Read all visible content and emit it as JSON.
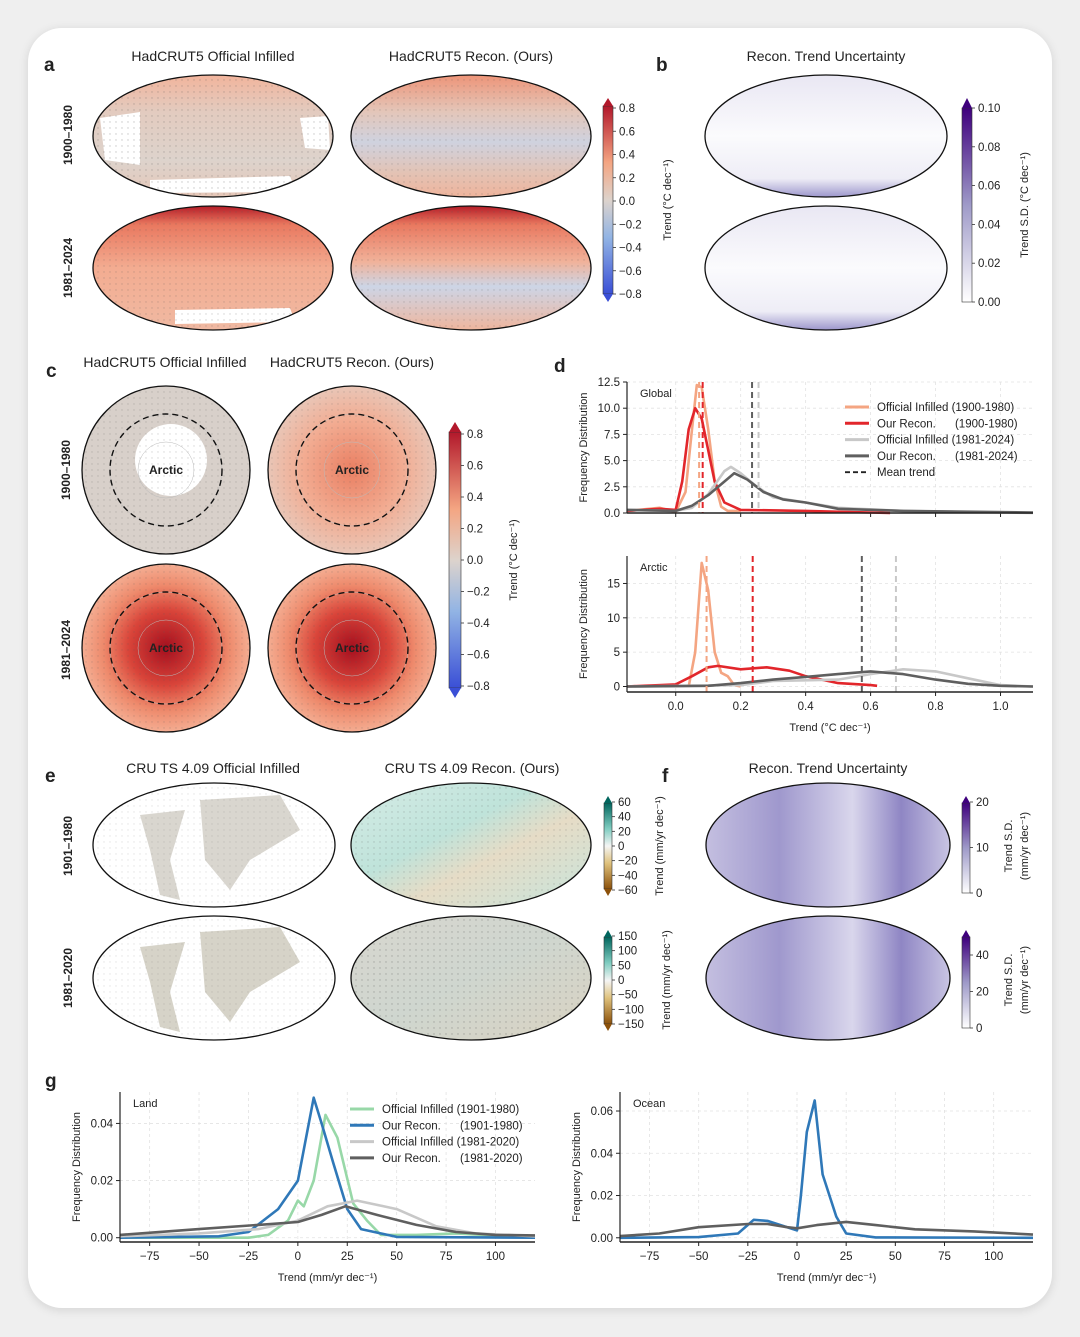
{
  "panels": {
    "a": {
      "label": "a",
      "titles": [
        "HadCRUT5 Official Infilled",
        "HadCRUT5 Recon. (Ours)"
      ],
      "rows": [
        "1900–1980",
        "1981–2024"
      ],
      "colorbar": {
        "ticks": [
          "0.8",
          "0.6",
          "0.4",
          "0.2",
          "0.0",
          "−0.2",
          "−0.4",
          "−0.6",
          "−0.8"
        ],
        "label": "Trend (°C dec⁻¹)",
        "colors": [
          "#b2182b",
          "#f4a582",
          "#ddd3cc",
          "#92b4e4",
          "#3a4fd6"
        ]
      }
    },
    "b": {
      "label": "b",
      "title": "Recon. Trend Uncertainty",
      "colorbar": {
        "ticks": [
          "0.10",
          "0.08",
          "0.06",
          "0.04",
          "0.02",
          "0.00"
        ],
        "label": "Trend S.D. (°C dec⁻¹)",
        "colors": [
          "#3f007d",
          "#9e9ac8",
          "#ffffff"
        ]
      }
    },
    "c": {
      "label": "c",
      "titles": [
        "HadCRUT5 Official Infilled",
        "HadCRUT5 Recon. (Ours)"
      ],
      "rows": [
        "1900–1980",
        "1981–2024"
      ],
      "region": "Arctic",
      "colorbar": {
        "ticks": [
          "0.8",
          "0.6",
          "0.4",
          "0.2",
          "0.0",
          "−0.2",
          "−0.4",
          "−0.6",
          "−0.8"
        ],
        "label": "Trend (°C dec⁻¹)"
      }
    },
    "d": {
      "label": "d"
    },
    "e": {
      "label": "e",
      "titles": [
        "CRU TS 4.09 Official Infilled",
        "CRU TS 4.09 Recon. (Ours)"
      ],
      "rows": [
        "1901–1980",
        "1981–2020"
      ],
      "colorbar1": {
        "ticks": [
          "60",
          "40",
          "20",
          "0",
          "−20",
          "−40",
          "−60"
        ],
        "label": "Trend (mm/yr dec⁻¹)",
        "colors": [
          "#01665e",
          "#80cdc1",
          "#f5f5f5",
          "#dfc27d",
          "#8c510a"
        ]
      },
      "colorbar2": {
        "ticks": [
          "150",
          "100",
          "50",
          "0",
          "−50",
          "−100",
          "−150"
        ],
        "label": "Trend (mm/yr dec⁻¹)"
      }
    },
    "f": {
      "label": "f",
      "title": "Recon. Trend Uncertainty",
      "colorbar1": {
        "ticks": [
          "20",
          "10",
          "0"
        ],
        "label1": "Trend S.D.",
        "label2": "(mm/yr dec⁻¹)"
      },
      "colorbar2": {
        "ticks": [
          "40",
          "20",
          "0"
        ],
        "label1": "Trend S.D.",
        "label2": "(mm/yr dec⁻¹)"
      }
    },
    "g": {
      "label": "g"
    }
  },
  "chart_data": [
    {
      "id": "d-global",
      "type": "line",
      "panel_text": "Global",
      "ylabel": "Frequency Distribution",
      "xlabel": "",
      "xlim": [
        -0.15,
        1.1
      ],
      "ylim": [
        0,
        12.5
      ],
      "grid": true,
      "xticks": [
        "0.0",
        "0.2",
        "0.4",
        "0.6",
        "0.8",
        "1.0"
      ],
      "yticks": [
        "0.0",
        "2.5",
        "5.0",
        "7.5",
        "10.0",
        "12.5"
      ],
      "show_xtick_labels": false,
      "legend": {
        "placement": "top-right",
        "entries": [
          {
            "label": "Official Infilled (1900-1980)",
            "color": "#f4a582",
            "style": "solid"
          },
          {
            "label": "Our Recon.      (1900-1980)",
            "color": "#e2262b",
            "style": "solid"
          },
          {
            "label": "Official Infilled (1981-2024)",
            "color": "#c8c8c8",
            "style": "solid"
          },
          {
            "label": "Our Recon.      (1981-2024)",
            "color": "#5f5f5f",
            "style": "solid"
          },
          {
            "label": "Mean trend",
            "color": "#222222",
            "style": "dashed"
          }
        ]
      },
      "series": [
        {
          "name": "Official Infilled (1900-1980)",
          "color": "#f4a582",
          "points": [
            [
              -0.15,
              0.2
            ],
            [
              -0.05,
              0.5
            ],
            [
              0.0,
              0.1
            ],
            [
              0.03,
              2
            ],
            [
              0.05,
              8
            ],
            [
              0.065,
              12.2
            ],
            [
              0.08,
              12
            ],
            [
              0.1,
              8
            ],
            [
              0.12,
              3
            ],
            [
              0.14,
              0.6
            ],
            [
              0.16,
              0.2
            ],
            [
              0.2,
              0.2
            ]
          ],
          "mean": 0.072
        },
        {
          "name": "Our Recon. (1900-1980)",
          "color": "#e2262b",
          "points": [
            [
              -0.15,
              0.2
            ],
            [
              -0.05,
              0.4
            ],
            [
              0.0,
              0.3
            ],
            [
              0.02,
              3
            ],
            [
              0.04,
              8
            ],
            [
              0.06,
              10
            ],
            [
              0.08,
              9
            ],
            [
              0.1,
              6
            ],
            [
              0.12,
              3
            ],
            [
              0.15,
              1
            ],
            [
              0.2,
              0.3
            ],
            [
              0.4,
              0.2
            ],
            [
              0.66,
              0.0
            ]
          ],
          "mean": 0.083
        },
        {
          "name": "Official Infilled (1981-2024)",
          "color": "#c8c8c8",
          "points": [
            [
              -0.15,
              0.3
            ],
            [
              0.0,
              0.2
            ],
            [
              0.05,
              0.5
            ],
            [
              0.1,
              1.8
            ],
            [
              0.15,
              4
            ],
            [
              0.17,
              4.4
            ],
            [
              0.2,
              3.8
            ],
            [
              0.25,
              2.5
            ],
            [
              0.3,
              1.5
            ],
            [
              0.4,
              1.0
            ],
            [
              0.5,
              0.5
            ],
            [
              0.7,
              0.2
            ],
            [
              1.1,
              0.0
            ]
          ],
          "mean": 0.255
        },
        {
          "name": "Our Recon. (1981-2024)",
          "color": "#5f5f5f",
          "points": [
            [
              -0.15,
              0.3
            ],
            [
              0.0,
              0.2
            ],
            [
              0.05,
              0.7
            ],
            [
              0.1,
              1.7
            ],
            [
              0.18,
              3.8
            ],
            [
              0.22,
              3.2
            ],
            [
              0.27,
              2.0
            ],
            [
              0.33,
              1.3
            ],
            [
              0.4,
              1.0
            ],
            [
              0.5,
              0.4
            ],
            [
              0.7,
              0.2
            ],
            [
              1.1,
              0.05
            ]
          ],
          "mean": 0.235
        }
      ]
    },
    {
      "id": "d-arctic",
      "type": "line",
      "panel_text": "Arctic",
      "ylabel": "Frequency Distribution",
      "xlabel": "Trend (°C dec⁻¹)",
      "xlim": [
        -0.15,
        1.1
      ],
      "ylim": [
        -0.8,
        19
      ],
      "grid": true,
      "xticks": [
        "0.0",
        "0.2",
        "0.4",
        "0.6",
        "0.8",
        "1.0"
      ],
      "yticks": [
        "0",
        "5",
        "10",
        "15"
      ],
      "show_xtick_labels": true,
      "series": [
        {
          "name": "Official Infilled (1900-1980)",
          "color": "#f4a582",
          "points": [
            [
              0.04,
              0
            ],
            [
              0.06,
              5
            ],
            [
              0.08,
              18
            ],
            [
              0.1,
              14
            ],
            [
              0.12,
              5
            ],
            [
              0.14,
              2
            ],
            [
              0.16,
              1.5
            ],
            [
              0.18,
              0.2
            ],
            [
              0.2,
              0
            ]
          ],
          "mean": 0.095
        },
        {
          "name": "Our Recon. (1900-1980)",
          "color": "#e2262b",
          "points": [
            [
              -0.15,
              0
            ],
            [
              0.0,
              0.3
            ],
            [
              0.05,
              1.5
            ],
            [
              0.1,
              2.8
            ],
            [
              0.13,
              3
            ],
            [
              0.2,
              2.5
            ],
            [
              0.28,
              2.8
            ],
            [
              0.35,
              2.3
            ],
            [
              0.4,
              1.5
            ],
            [
              0.5,
              0.5
            ],
            [
              0.6,
              0.2
            ],
            [
              0.62,
              0.1
            ]
          ],
          "mean": 0.237
        },
        {
          "name": "Official Infilled (1981-2024)",
          "color": "#c8c8c8",
          "points": [
            [
              -0.15,
              0
            ],
            [
              0.2,
              0.2
            ],
            [
              0.3,
              0.8
            ],
            [
              0.4,
              0.9
            ],
            [
              0.5,
              1.0
            ],
            [
              0.6,
              1.8
            ],
            [
              0.7,
              2.5
            ],
            [
              0.8,
              2.2
            ],
            [
              0.9,
              1.2
            ],
            [
              1.0,
              0.2
            ],
            [
              1.1,
              0
            ]
          ],
          "mean": 0.678
        },
        {
          "name": "Our Recon. (1981-2024)",
          "color": "#5f5f5f",
          "points": [
            [
              -0.15,
              0
            ],
            [
              0.1,
              0.1
            ],
            [
              0.2,
              0.5
            ],
            [
              0.3,
              1.0
            ],
            [
              0.4,
              1.4
            ],
            [
              0.5,
              1.8
            ],
            [
              0.6,
              2.2
            ],
            [
              0.7,
              1.8
            ],
            [
              0.8,
              1.0
            ],
            [
              0.9,
              0.4
            ],
            [
              1.0,
              0.1
            ],
            [
              1.1,
              0
            ]
          ],
          "mean": 0.573
        }
      ]
    },
    {
      "id": "g-land",
      "type": "line",
      "panel_text": "Land",
      "ylabel": "Frequency Distribution",
      "xlabel": "Trend (mm/yr dec⁻¹)",
      "xlim": [
        -90,
        120
      ],
      "ylim": [
        -0.0015,
        0.051
      ],
      "grid": true,
      "xticks": [
        "−75",
        "−50",
        "−25",
        "0",
        "25",
        "50",
        "75",
        "100"
      ],
      "yticks": [
        "0.00",
        "0.02",
        "0.04"
      ],
      "show_xtick_labels": true,
      "legend": {
        "placement": "top-right",
        "entries": [
          {
            "label": "Official Infilled (1901-1980)",
            "color": "#98d8a8",
            "style": "solid"
          },
          {
            "label": "Our Recon.      (1901-1980)",
            "color": "#2f78b8",
            "style": "solid"
          },
          {
            "label": "Official Infilled (1981-2020)",
            "color": "#c8c8c8",
            "style": "solid"
          },
          {
            "label": "Our Recon.      (1981-2020)",
            "color": "#5f5f5f",
            "style": "solid"
          }
        ]
      },
      "series": [
        {
          "name": "Official Infilled (1901-1980)",
          "color": "#98d8a8",
          "points": [
            [
              -90,
              0
            ],
            [
              -25,
              0
            ],
            [
              -15,
              0.001
            ],
            [
              -5,
              0.006
            ],
            [
              0,
              0.013
            ],
            [
              3,
              0.011
            ],
            [
              8,
              0.02
            ],
            [
              14,
              0.043
            ],
            [
              20,
              0.035
            ],
            [
              28,
              0.012
            ],
            [
              35,
              0.006
            ],
            [
              42,
              0.001
            ],
            [
              60,
              0.001
            ],
            [
              80,
              0.0015
            ],
            [
              120,
              0
            ]
          ]
        },
        {
          "name": "Our Recon. (1901-1980)",
          "color": "#2f78b8",
          "points": [
            [
              -90,
              0
            ],
            [
              -40,
              0.0005
            ],
            [
              -25,
              0.002
            ],
            [
              -10,
              0.01
            ],
            [
              0,
              0.02
            ],
            [
              8,
              0.049
            ],
            [
              12,
              0.04
            ],
            [
              18,
              0.026
            ],
            [
              25,
              0.01
            ],
            [
              32,
              0.003
            ],
            [
              50,
              0.0003
            ],
            [
              120,
              0
            ]
          ]
        },
        {
          "name": "Official Infilled (1981-2020)",
          "color": "#c8c8c8",
          "points": [
            [
              -90,
              0.0005
            ],
            [
              -50,
              0.0015
            ],
            [
              -20,
              0.003
            ],
            [
              0,
              0.006
            ],
            [
              15,
              0.011
            ],
            [
              30,
              0.013
            ],
            [
              50,
              0.01
            ],
            [
              70,
              0.004
            ],
            [
              90,
              0.0015
            ],
            [
              120,
              0.0005
            ]
          ]
        },
        {
          "name": "Our Recon. (1981-2020)",
          "color": "#5f5f5f",
          "points": [
            [
              -90,
              0.001
            ],
            [
              -50,
              0.003
            ],
            [
              -20,
              0.0045
            ],
            [
              0,
              0.0055
            ],
            [
              12,
              0.008
            ],
            [
              24,
              0.011
            ],
            [
              40,
              0.008
            ],
            [
              60,
              0.0045
            ],
            [
              80,
              0.002
            ],
            [
              100,
              0.001
            ],
            [
              120,
              0.0008
            ]
          ]
        }
      ]
    },
    {
      "id": "g-ocean",
      "type": "line",
      "panel_text": "Ocean",
      "ylabel": "Frequency Distribution",
      "xlabel": "Trend (mm/yr dec⁻¹)",
      "xlim": [
        -90,
        120
      ],
      "ylim": [
        -0.002,
        0.069
      ],
      "grid": true,
      "xticks": [
        "−75",
        "−50",
        "−25",
        "0",
        "25",
        "50",
        "75",
        "100"
      ],
      "yticks": [
        "0.00",
        "0.02",
        "0.04",
        "0.06"
      ],
      "show_xtick_labels": true,
      "series": [
        {
          "name": "Our Recon. (1901-1980)",
          "color": "#2f78b8",
          "points": [
            [
              -90,
              0
            ],
            [
              -50,
              0.0003
            ],
            [
              -30,
              0.002
            ],
            [
              -22,
              0.0085
            ],
            [
              -15,
              0.008
            ],
            [
              -5,
              0.005
            ],
            [
              0,
              0.0035
            ],
            [
              2,
              0.02
            ],
            [
              5,
              0.05
            ],
            [
              9,
              0.065
            ],
            [
              13,
              0.03
            ],
            [
              20,
              0.01
            ],
            [
              25,
              0.002
            ],
            [
              40,
              0.0002
            ],
            [
              120,
              0
            ]
          ]
        },
        {
          "name": "Our Recon. (1981-2020)",
          "color": "#5f5f5f",
          "points": [
            [
              -90,
              0.0008
            ],
            [
              -70,
              0.002
            ],
            [
              -50,
              0.005
            ],
            [
              -25,
              0.0065
            ],
            [
              -15,
              0.0065
            ],
            [
              -5,
              0.005
            ],
            [
              0,
              0.0045
            ],
            [
              10,
              0.006
            ],
            [
              25,
              0.0075
            ],
            [
              40,
              0.006
            ],
            [
              60,
              0.004
            ],
            [
              90,
              0.003
            ],
            [
              120,
              0.0015
            ]
          ]
        }
      ]
    }
  ]
}
